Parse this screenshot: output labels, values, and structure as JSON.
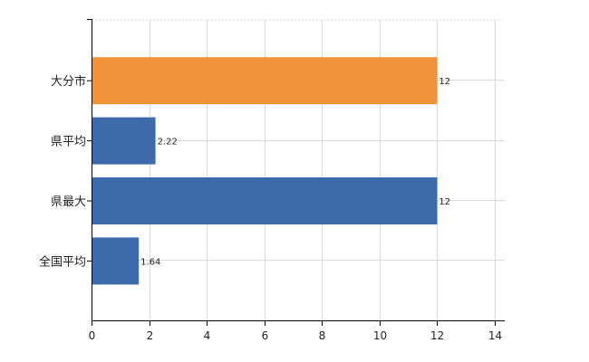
{
  "chart_data": {
    "type": "bar",
    "orientation": "horizontal",
    "categories": [
      "大分市",
      "県平均",
      "県最大",
      "全国平均"
    ],
    "values": [
      12,
      2.22,
      12,
      1.64
    ],
    "data_labels": [
      "12",
      "2.22",
      "12",
      "1.64"
    ],
    "colors": [
      "#F0923A",
      "#3C6AAA",
      "#3C6AAA",
      "#3C6AAA"
    ],
    "xlim": [
      0,
      14
    ],
    "xticks": [
      0,
      2,
      4,
      6,
      8,
      10,
      12,
      14
    ],
    "grid": true
  }
}
